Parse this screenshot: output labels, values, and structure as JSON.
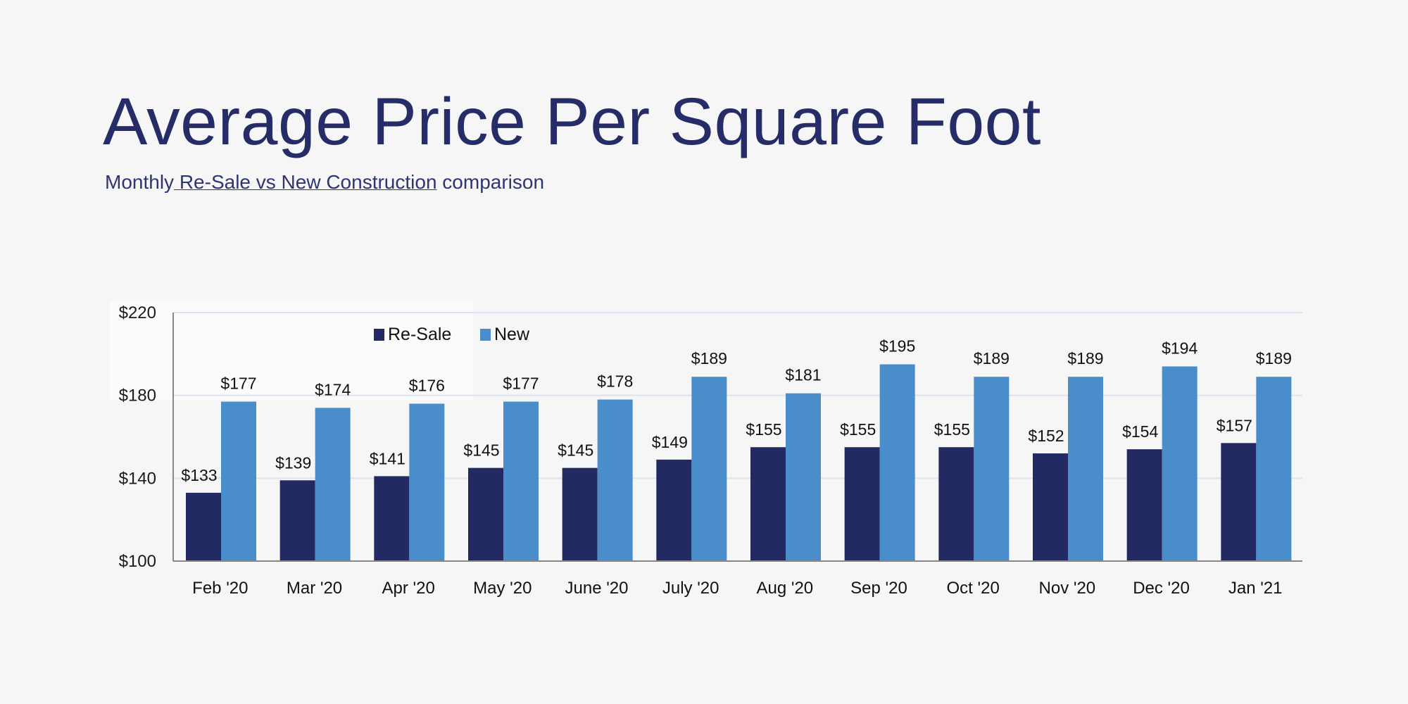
{
  "title": "Average Price Per Square Foot",
  "subtitle": {
    "before": "Monthly",
    "underlined": " Re-Sale vs New Construction",
    "after": " comparison"
  },
  "colors": {
    "resale": "#232a63",
    "new": "#4a8dcb",
    "title": "#252c68",
    "background": "#f6f6f6"
  },
  "chart_data": {
    "type": "bar",
    "title": "",
    "xlabel": "",
    "ylabel": "",
    "ylim": [
      100,
      220
    ],
    "yticks": [
      100,
      140,
      180,
      220
    ],
    "ytick_labels": [
      "$100",
      "$140",
      "$180",
      "$220"
    ],
    "grid": true,
    "legend": "top-left",
    "categories": [
      "Feb '20",
      "Mar '20",
      "Apr '20",
      "May '20",
      "June '20",
      "July '20",
      "Aug '20",
      "Sep '20",
      "Oct '20",
      "Nov '20",
      "Dec '20",
      "Jan '21"
    ],
    "series": [
      {
        "name": "Re-Sale",
        "color": "#232a63",
        "values": [
          133,
          139,
          141,
          145,
          145,
          149,
          155,
          155,
          155,
          152,
          154,
          157
        ]
      },
      {
        "name": "New",
        "color": "#4a8dcb",
        "values": [
          177,
          174,
          176,
          177,
          178,
          189,
          181,
          195,
          189,
          189,
          194,
          189
        ]
      }
    ],
    "data_label_prefix": "$"
  }
}
